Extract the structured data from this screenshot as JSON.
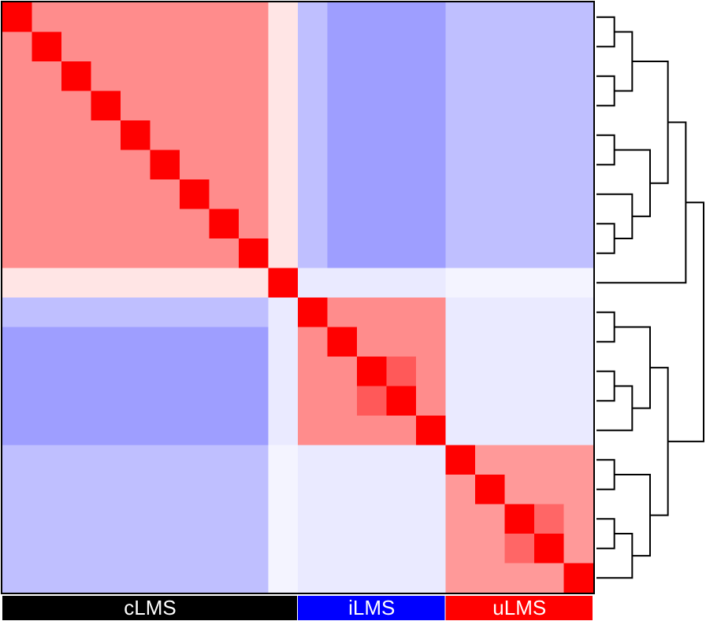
{
  "chart_data": {
    "type": "heatmap",
    "zlim": [
      -1,
      1
    ],
    "low_color": "#2828ff",
    "mid_color": "#ffffff",
    "high_color": "#ff0000",
    "groups": [
      {
        "name": "cLMS",
        "color": "#000000",
        "count": 10
      },
      {
        "name": "iLMS",
        "color": "#0000ff",
        "count": 5
      },
      {
        "name": "uLMS",
        "color": "#ff0000",
        "count": 5
      }
    ],
    "z": [
      [
        1,
        0.45,
        0.45,
        0.45,
        0.45,
        0.45,
        0.45,
        0.45,
        0.45,
        0.1,
        -0.3,
        -0.45,
        -0.45,
        -0.45,
        -0.45,
        -0.3,
        -0.3,
        -0.3,
        -0.3,
        -0.3
      ],
      [
        0.45,
        1,
        0.45,
        0.45,
        0.45,
        0.45,
        0.45,
        0.45,
        0.45,
        0.1,
        -0.3,
        -0.45,
        -0.45,
        -0.45,
        -0.45,
        -0.3,
        -0.3,
        -0.3,
        -0.3,
        -0.3
      ],
      [
        0.45,
        0.45,
        1,
        0.45,
        0.45,
        0.45,
        0.45,
        0.45,
        0.45,
        0.1,
        -0.3,
        -0.45,
        -0.45,
        -0.45,
        -0.45,
        -0.3,
        -0.3,
        -0.3,
        -0.3,
        -0.3
      ],
      [
        0.45,
        0.45,
        0.45,
        1,
        0.45,
        0.45,
        0.45,
        0.45,
        0.45,
        0.1,
        -0.3,
        -0.45,
        -0.45,
        -0.45,
        -0.45,
        -0.3,
        -0.3,
        -0.3,
        -0.3,
        -0.3
      ],
      [
        0.45,
        0.45,
        0.45,
        0.45,
        1,
        0.45,
        0.45,
        0.45,
        0.45,
        0.1,
        -0.3,
        -0.45,
        -0.45,
        -0.45,
        -0.45,
        -0.3,
        -0.3,
        -0.3,
        -0.3,
        -0.3
      ],
      [
        0.45,
        0.45,
        0.45,
        0.45,
        0.45,
        1,
        0.45,
        0.45,
        0.45,
        0.1,
        -0.3,
        -0.45,
        -0.45,
        -0.45,
        -0.45,
        -0.3,
        -0.3,
        -0.3,
        -0.3,
        -0.3
      ],
      [
        0.45,
        0.45,
        0.45,
        0.45,
        0.45,
        0.45,
        1,
        0.45,
        0.45,
        0.1,
        -0.3,
        -0.45,
        -0.45,
        -0.45,
        -0.45,
        -0.3,
        -0.3,
        -0.3,
        -0.3,
        -0.3
      ],
      [
        0.45,
        0.45,
        0.45,
        0.45,
        0.45,
        0.45,
        0.45,
        1,
        0.45,
        0.1,
        -0.3,
        -0.45,
        -0.45,
        -0.45,
        -0.45,
        -0.3,
        -0.3,
        -0.3,
        -0.3,
        -0.3
      ],
      [
        0.45,
        0.45,
        0.45,
        0.45,
        0.45,
        0.45,
        0.45,
        0.45,
        1,
        0.1,
        -0.3,
        -0.45,
        -0.45,
        -0.45,
        -0.45,
        -0.3,
        -0.3,
        -0.3,
        -0.3,
        -0.3
      ],
      [
        0.1,
        0.1,
        0.1,
        0.1,
        0.1,
        0.1,
        0.1,
        0.1,
        0.1,
        1,
        -0.1,
        -0.1,
        -0.1,
        -0.1,
        -0.1,
        -0.05,
        -0.05,
        -0.05,
        -0.05,
        -0.05
      ],
      [
        -0.3,
        -0.3,
        -0.3,
        -0.3,
        -0.3,
        -0.3,
        -0.3,
        -0.3,
        -0.3,
        -0.1,
        1,
        0.45,
        0.45,
        0.45,
        0.45,
        -0.1,
        -0.1,
        -0.1,
        -0.1,
        -0.1
      ],
      [
        -0.45,
        -0.45,
        -0.45,
        -0.45,
        -0.45,
        -0.45,
        -0.45,
        -0.45,
        -0.45,
        -0.1,
        0.45,
        1,
        0.45,
        0.45,
        0.45,
        -0.1,
        -0.1,
        -0.1,
        -0.1,
        -0.1
      ],
      [
        -0.45,
        -0.45,
        -0.45,
        -0.45,
        -0.45,
        -0.45,
        -0.45,
        -0.45,
        -0.45,
        -0.1,
        0.45,
        0.45,
        1,
        0.65,
        0.45,
        -0.1,
        -0.1,
        -0.1,
        -0.1,
        -0.1
      ],
      [
        -0.45,
        -0.45,
        -0.45,
        -0.45,
        -0.45,
        -0.45,
        -0.45,
        -0.45,
        -0.45,
        -0.1,
        0.45,
        0.45,
        0.65,
        1,
        0.45,
        -0.1,
        -0.1,
        -0.1,
        -0.1,
        -0.1
      ],
      [
        -0.45,
        -0.45,
        -0.45,
        -0.45,
        -0.45,
        -0.45,
        -0.45,
        -0.45,
        -0.45,
        -0.1,
        0.45,
        0.45,
        0.45,
        0.45,
        1,
        -0.1,
        -0.1,
        -0.1,
        -0.1,
        -0.1
      ],
      [
        -0.3,
        -0.3,
        -0.3,
        -0.3,
        -0.3,
        -0.3,
        -0.3,
        -0.3,
        -0.3,
        -0.05,
        -0.1,
        -0.1,
        -0.1,
        -0.1,
        -0.1,
        1,
        0.4,
        0.4,
        0.4,
        0.4
      ],
      [
        -0.3,
        -0.3,
        -0.3,
        -0.3,
        -0.3,
        -0.3,
        -0.3,
        -0.3,
        -0.3,
        -0.05,
        -0.1,
        -0.1,
        -0.1,
        -0.1,
        -0.1,
        0.4,
        1,
        0.4,
        0.4,
        0.4
      ],
      [
        -0.3,
        -0.3,
        -0.3,
        -0.3,
        -0.3,
        -0.3,
        -0.3,
        -0.3,
        -0.3,
        -0.05,
        -0.1,
        -0.1,
        -0.1,
        -0.1,
        -0.1,
        0.4,
        0.4,
        1,
        0.6,
        0.4
      ],
      [
        -0.3,
        -0.3,
        -0.3,
        -0.3,
        -0.3,
        -0.3,
        -0.3,
        -0.3,
        -0.3,
        -0.05,
        -0.1,
        -0.1,
        -0.1,
        -0.1,
        -0.1,
        0.4,
        0.4,
        0.6,
        1,
        0.4
      ],
      [
        -0.3,
        -0.3,
        -0.3,
        -0.3,
        -0.3,
        -0.3,
        -0.3,
        -0.3,
        -0.3,
        -0.05,
        -0.1,
        -0.1,
        -0.1,
        -0.1,
        -0.1,
        0.4,
        0.4,
        0.4,
        0.4,
        1
      ]
    ]
  }
}
